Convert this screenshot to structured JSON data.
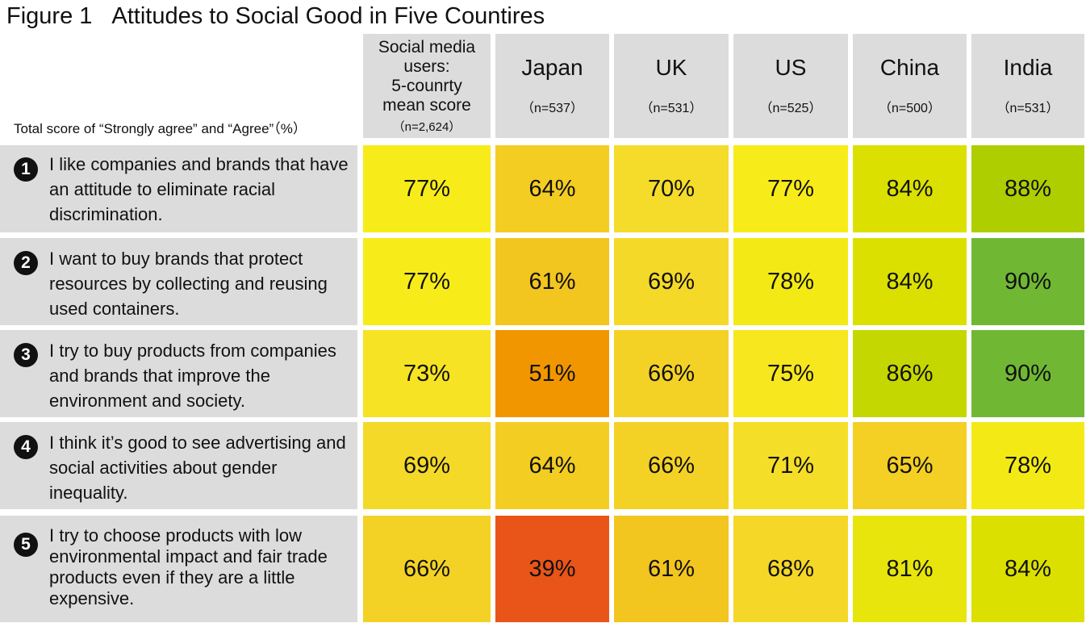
{
  "title": {
    "figure": "Figure 1",
    "text": "Attitudes to Social Good in Five Countires"
  },
  "unit_label": "Total score of “Strongly agree” and “Agree”（%）",
  "columns": [
    {
      "name": "Social media users: 5-counrty mean score",
      "name_lines": [
        "Social media",
        "users:",
        "5-counrty",
        "mean score"
      ],
      "n": "（n=2,624）"
    },
    {
      "name": "Japan",
      "n": "（n=537）"
    },
    {
      "name": "UK",
      "n": "（n=531）"
    },
    {
      "name": "US",
      "n": "（n=525）"
    },
    {
      "name": "China",
      "n": "（n=500）"
    },
    {
      "name": "India",
      "n": "（n=531）"
    }
  ],
  "chart_data": {
    "type": "heatmap",
    "title": "Attitudes to Social Good in Five Countires",
    "unit": "%",
    "columns": [
      "Social media users: 5-counrty mean score",
      "Japan",
      "UK",
      "US",
      "China",
      "India"
    ],
    "rows": [
      {
        "num": "1",
        "label": "I like companies and brands that have an attitude to eliminate racial discrimination.",
        "values": [
          77,
          64,
          70,
          77,
          84,
          88
        ]
      },
      {
        "num": "2",
        "label": "I want to buy brands that protect resources by collecting and reusing used containers.",
        "values": [
          77,
          61,
          69,
          78,
          84,
          90
        ]
      },
      {
        "num": "3",
        "label": "I try to buy products from companies and brands that improve the environment and society.",
        "values": [
          73,
          51,
          66,
          75,
          86,
          90
        ]
      },
      {
        "num": "4",
        "label": "I think it’s good to see advertising and social activities about gender inequality.",
        "values": [
          69,
          64,
          66,
          71,
          65,
          78
        ]
      },
      {
        "num": "5",
        "label": "I try to choose products with low environmental impact and fair trade products even if they are a little expensive.",
        "values": [
          66,
          39,
          61,
          68,
          81,
          84
        ]
      }
    ]
  },
  "colors": {
    "header_bg": "#dcdcdc",
    "scale": {
      "39": "#e95418",
      "51": "#f29600",
      "61": "#f3c51f",
      "66": "#f5d22a",
      "70": "#f5dc2a",
      "77": "#f7ec19",
      "84": "#dbe000",
      "88": "#aece00",
      "90": "#70b834"
    }
  }
}
